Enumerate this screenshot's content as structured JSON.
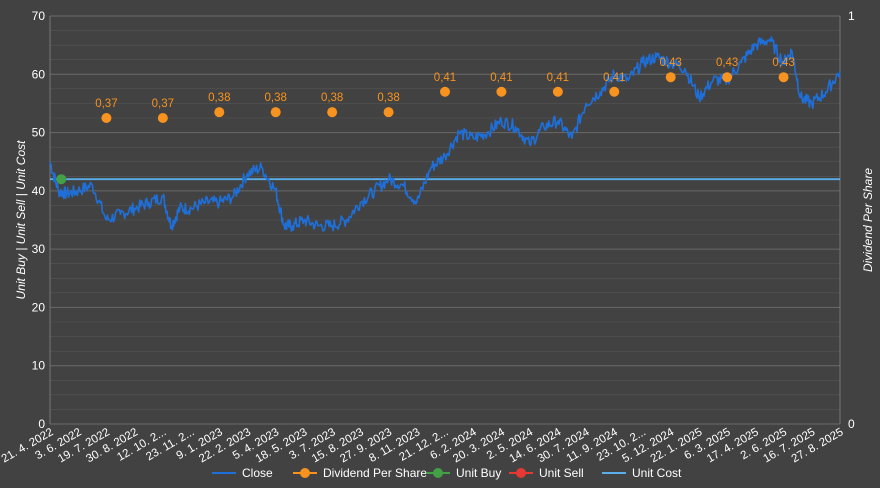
{
  "chart_data": {
    "type": "line",
    "y_left": {
      "label": "Unit Buy | Unit Sell | Unit Cost",
      "ticks": [
        0,
        10,
        20,
        30,
        40,
        50,
        60,
        70
      ],
      "range": [
        0,
        70
      ]
    },
    "y_right": {
      "label": "Dividend Per Share",
      "ticks": [
        "0",
        "1"
      ],
      "range": [
        0,
        1
      ]
    },
    "x_tick_labels": [
      "21. 4. 2022",
      "3. 6. 2022",
      "19. 7. 2022",
      "30. 8. 2022",
      "12. 10. 2...",
      "23. 11. 2...",
      "9. 1. 2023",
      "22. 2. 2023",
      "5. 4. 2023",
      "18. 5. 2023",
      "3. 7. 2023",
      "15. 8. 2023",
      "27. 9. 2023",
      "8. 11. 2023",
      "21. 12. 2...",
      "6. 2. 2024",
      "20. 3. 2024",
      "2. 5. 2024",
      "14. 6. 2024",
      "30. 7. 2024",
      "11. 9. 2024",
      "23. 10. 2...",
      "5. 12. 2024",
      "22. 1. 2025",
      "6. 3. 2025",
      "17. 4. 2025",
      "2. 6. 2025",
      "16. 7. 2025",
      "27. 8. 2025"
    ],
    "series": [
      {
        "name": "Close",
        "color": "#1e6fd9",
        "x": [
          0,
          0.3,
          0.6,
          1,
          1.5,
          2,
          2.5,
          3,
          3.5,
          4,
          4.3,
          4.6,
          5,
          5.5,
          6,
          6.5,
          7,
          7.5,
          8,
          8.3,
          8.6,
          9,
          9.5,
          10,
          10.5,
          11,
          11.5,
          12,
          12.5,
          13,
          13.5,
          14,
          14.5,
          15,
          15.5,
          16,
          16.5,
          17,
          17.5,
          18,
          18.5,
          19,
          19.5,
          20,
          20.5,
          21,
          21.5,
          22,
          22.5,
          23,
          23.5,
          24,
          24.5,
          25,
          25.5,
          26,
          26.3,
          26.6,
          27,
          27.5,
          28
        ],
        "values": [
          45,
          40,
          39.5,
          40,
          41,
          35,
          36,
          37,
          38,
          39,
          34,
          37,
          37,
          38,
          38,
          39,
          43,
          44,
          40,
          34,
          34,
          35,
          34,
          34,
          35,
          38,
          40,
          42,
          41,
          38,
          44,
          46,
          50,
          49,
          50,
          52,
          51,
          48,
          51,
          52,
          49,
          55,
          57,
          60,
          59,
          62,
          63,
          62,
          61,
          56,
          59,
          59,
          62,
          65,
          66,
          62,
          64,
          56,
          55,
          57,
          60.5
        ]
      },
      {
        "name": "Dividend Per Share",
        "color": "#f7931e",
        "x": [
          1,
          2,
          3,
          4,
          5,
          6,
          7,
          8,
          9,
          10,
          11,
          12,
          13,
          14,
          15
        ],
        "values": [
          0.37,
          0.37,
          0.38,
          0.38,
          0.38,
          0.38,
          0.41,
          0.41,
          0.41,
          0.41,
          0.43,
          0.43,
          0.43,
          null,
          null
        ],
        "labels": [
          "0,37",
          "0,37",
          "0,38",
          "0,38",
          "0,38",
          "0,38",
          "0,41",
          "0,41",
          "0,41",
          "0,41",
          "0,43",
          "0,43",
          "0,43"
        ],
        "points_y_left": [
          52.5,
          52.5,
          53.5,
          53.5,
          53.5,
          53.5,
          57,
          57,
          57,
          57,
          59.5,
          59.5,
          59.5
        ],
        "points_x": [
          2,
          4,
          6,
          8,
          10,
          12,
          14,
          16,
          18,
          20,
          22,
          24,
          26
        ]
      },
      {
        "name": "Unit Buy",
        "color": "#43a047",
        "x": [
          0.4
        ],
        "values": [
          42
        ]
      },
      {
        "name": "Unit Sell",
        "color": "#e53935",
        "x": [],
        "values": []
      },
      {
        "name": "Unit Cost",
        "color": "#5aaeea",
        "x": [
          0,
          28
        ],
        "values": [
          42,
          42
        ]
      }
    ],
    "legend_position": "bottom",
    "grid": true
  },
  "legend": [
    {
      "label": "Close",
      "color": "#1e6fd9",
      "kind": "line"
    },
    {
      "label": "Dividend Per Share",
      "color": "#f7931e",
      "kind": "dot"
    },
    {
      "label": "Unit Buy",
      "color": "#43a047",
      "kind": "dot"
    },
    {
      "label": "Unit Sell",
      "color": "#e53935",
      "kind": "dot"
    },
    {
      "label": "Unit Cost",
      "color": "#5aaeea",
      "kind": "line"
    }
  ]
}
